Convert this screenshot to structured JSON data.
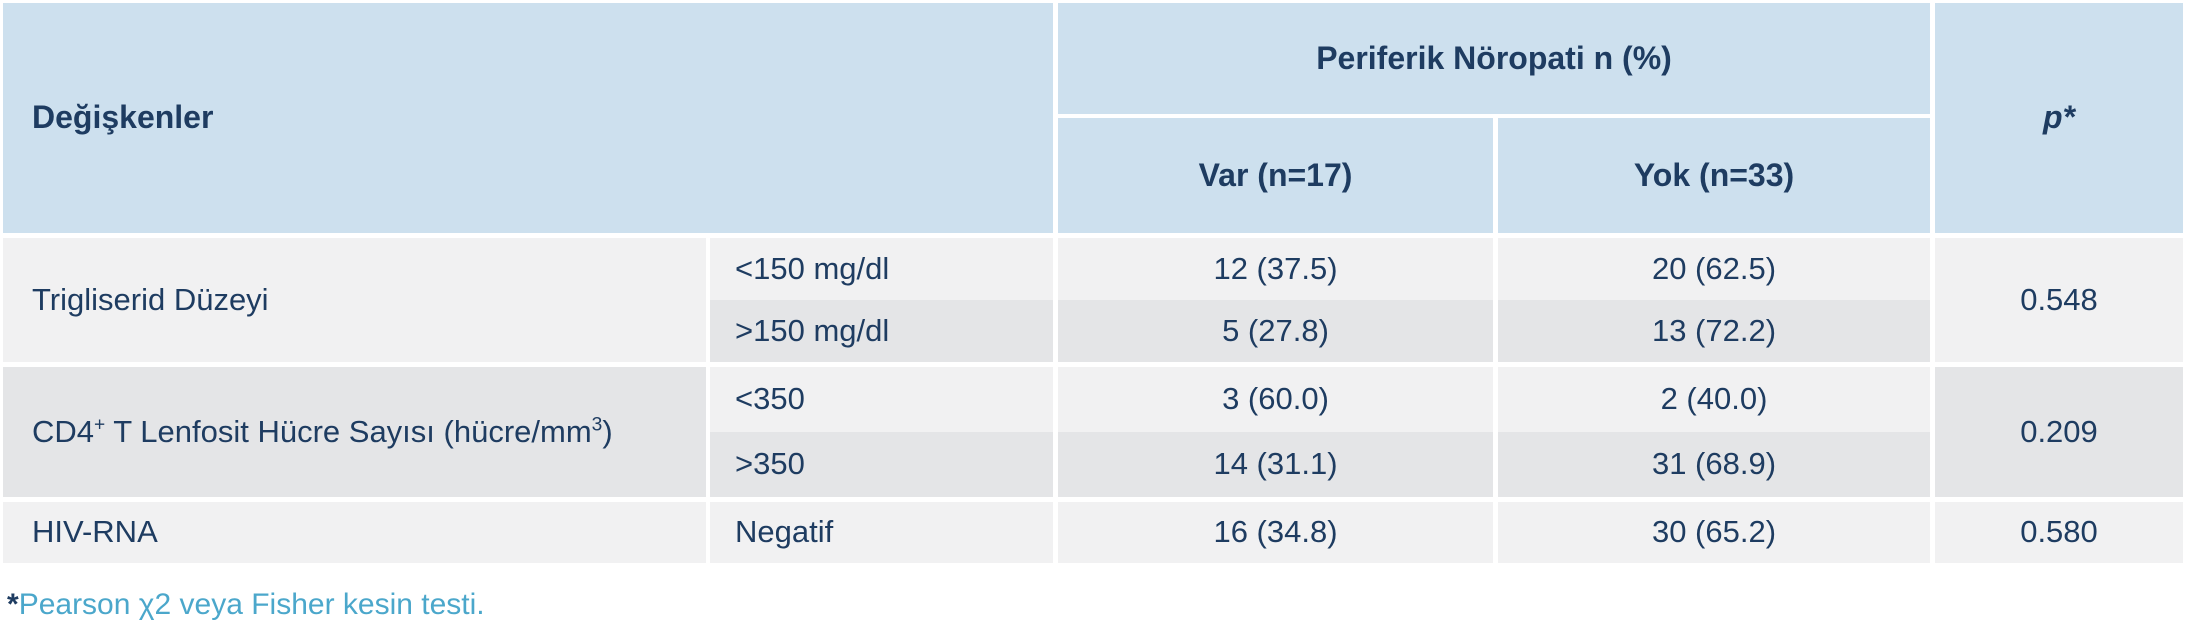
{
  "table": {
    "header": {
      "variables_label": "Değişkenler",
      "group_header": "Periferik Nöropati n (%)",
      "col_var": "Var (n=17)",
      "col_yok": "Yok (n=33)",
      "col_p": "p*"
    },
    "groups": [
      {
        "name": "Trigliserid Düzeyi",
        "rows": [
          {
            "label": "<150 mg/dl",
            "var": "12 (37.5)",
            "yok": "20 (62.5)"
          },
          {
            "label": ">150 mg/dl",
            "var": "5 (27.8)",
            "yok": "13 (72.2)"
          }
        ],
        "p": "0.548"
      },
      {
        "name_parts": {
          "base1": "CD4",
          "sup1": "+",
          "base2": " T Lenfosit Hücre Sayısı (hücre/mm",
          "sup2": "3",
          "base3": ")"
        },
        "rows": [
          {
            "label": "<350",
            "var": "3 (60.0)",
            "yok": "2 (40.0)"
          },
          {
            "label": ">350",
            "var": "14 (31.1)",
            "yok": "31 (68.9)"
          }
        ],
        "p": "0.209"
      },
      {
        "name": "HIV-RNA",
        "rows": [
          {
            "label": "Negatif",
            "var": "16 (34.8)",
            "yok": "30 (65.2)"
          }
        ],
        "p": "0.580"
      }
    ]
  },
  "footnote": {
    "marker": "*",
    "text": "Pearson χ2 veya Fisher kesin testi."
  },
  "colors": {
    "header_bg": "#cde0ee",
    "row_light": "#f1f1f2",
    "row_dark": "#e4e5e7",
    "text_navy": "#1e3c61",
    "footnote_blue": "#4ba7cb"
  }
}
